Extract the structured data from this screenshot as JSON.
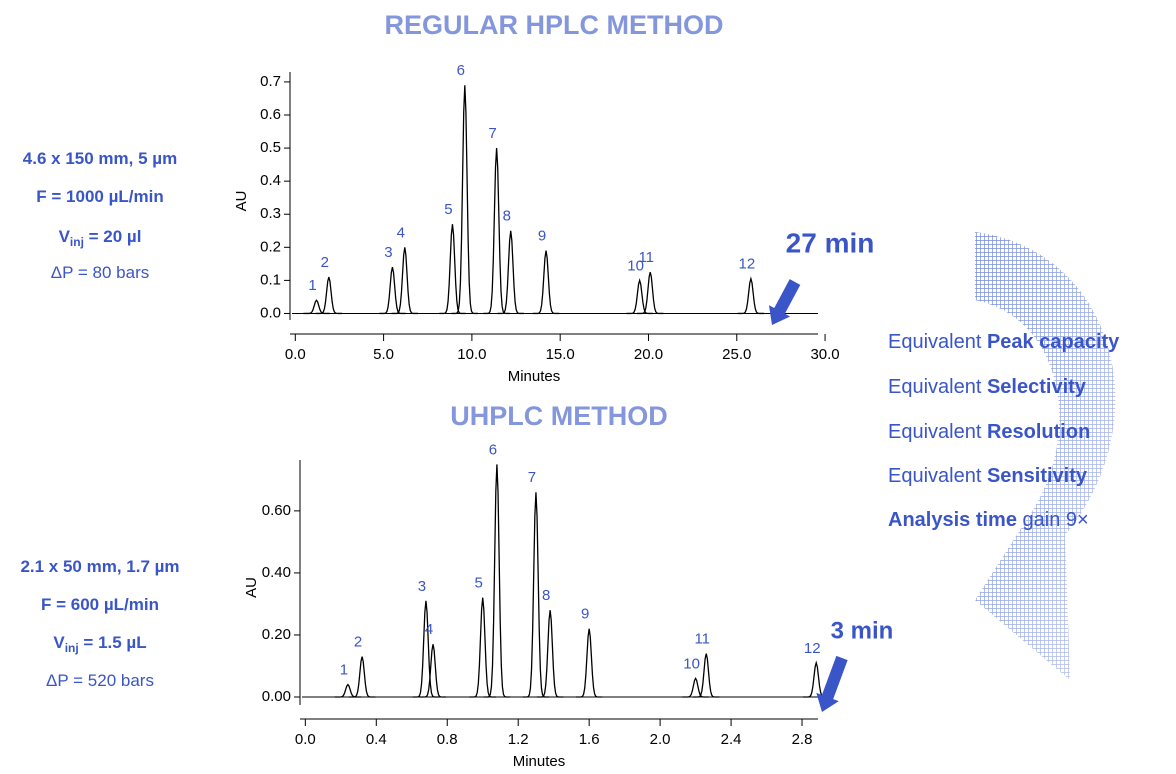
{
  "chart_data": [
    {
      "type": "line",
      "title": "REGULAR HPLC METHOD",
      "xlabel": "Minutes",
      "ylabel": "AU",
      "color": "#000000",
      "xlim": [
        -0.3,
        29.6
      ],
      "ylim": [
        -0.05,
        0.73
      ],
      "xticks": [
        {
          "value": 0,
          "label": "0.0"
        },
        {
          "value": 5,
          "label": "5.0"
        },
        {
          "value": 10,
          "label": "10.0"
        },
        {
          "value": 15,
          "label": "15.0"
        },
        {
          "value": 20,
          "label": "20.0"
        },
        {
          "value": 25,
          "label": "25.0"
        },
        {
          "value": 30,
          "label": "30.0"
        }
      ],
      "yticks": [
        {
          "value": 0,
          "label": "0.0"
        },
        {
          "value": 0.1,
          "label": "0.1"
        },
        {
          "value": 0.2,
          "label": "0.2"
        },
        {
          "value": 0.3,
          "label": "0.3"
        },
        {
          "value": 0.4,
          "label": "0.4"
        },
        {
          "value": 0.5,
          "label": "0.5"
        },
        {
          "value": 0.6,
          "label": "0.6"
        },
        {
          "value": 0.7,
          "label": "0.7"
        }
      ],
      "peaks": {
        "labels": [
          "1",
          "2",
          "3",
          "4",
          "5",
          "6",
          "7",
          "8",
          "9",
          "10",
          "11",
          "12"
        ],
        "x": [
          1.2,
          1.9,
          5.5,
          6.2,
          8.9,
          9.6,
          11.4,
          12.2,
          14.2,
          19.5,
          20.1,
          25.8
        ],
        "values": [
          0.04,
          0.11,
          0.14,
          0.2,
          0.27,
          0.69,
          0.5,
          0.25,
          0.19,
          0.1,
          0.125,
          0.105
        ]
      },
      "annotation": "27 min",
      "conditions": [
        {
          "text": "4.6 x 150 mm, 5 µm"
        },
        {
          "text": "F = 1000 µL/min"
        },
        {
          "text": "V",
          "sub": "inj",
          "rest": " = 20 µl"
        },
        {
          "text": "ΔP = 80 bars"
        }
      ]
    },
    {
      "type": "line",
      "title": "UHPLC METHOD",
      "xlabel": "Minutes",
      "ylabel": "AU",
      "color": "#000000",
      "xlim": [
        -0.03,
        2.89
      ],
      "ylim": [
        -0.058,
        0.764
      ],
      "xticks": [
        {
          "value": 0,
          "label": "0.0"
        },
        0.4,
        0.8,
        1.2,
        1.6,
        {
          "value": 2,
          "label": "2.0"
        },
        2.4,
        2.8
      ],
      "yticks": [
        {
          "value": 0,
          "label": "0.00"
        },
        {
          "value": 0.2,
          "label": "0.20"
        },
        {
          "value": 0.4,
          "label": "0.40"
        },
        {
          "value": 0.6,
          "label": "0.60"
        }
      ],
      "peaks": {
        "labels": [
          "1",
          "2",
          "3",
          "4",
          "5",
          "6",
          "7",
          "8",
          "9",
          "10",
          "11",
          "12"
        ],
        "x": [
          0.24,
          0.32,
          0.68,
          0.72,
          1.0,
          1.08,
          1.3,
          1.38,
          1.6,
          2.2,
          2.26,
          2.88
        ],
        "values": [
          0.04,
          0.13,
          0.31,
          0.17,
          0.32,
          0.75,
          0.66,
          0.28,
          0.22,
          0.06,
          0.14,
          0.11
        ]
      },
      "annotation": "3 min",
      "conditions": [
        {
          "text": "2.1 x 50 mm, 1.7 µm"
        },
        {
          "text": "F = 600 µL/min"
        },
        {
          "text": "V",
          "sub": "inj",
          "rest": " = 1.5 µL"
        },
        {
          "text": "ΔP = 520 bars"
        }
      ]
    }
  ],
  "summary": [
    [
      {
        "text": "Equivalent "
      },
      {
        "text": "Peak capacity",
        "bold": true
      }
    ],
    [
      {
        "text": "Equivalent "
      },
      {
        "text": "Selectivity",
        "bold": true
      }
    ],
    [
      {
        "text": "Equivalent "
      },
      {
        "text": "Resolution",
        "bold": true
      }
    ],
    [
      {
        "text": "Equivalent "
      },
      {
        "text": "Sensitivity",
        "bold": true
      }
    ],
    [
      {
        "text": "Analysis time",
        "bold": true
      },
      {
        "text": " gain 9×"
      }
    ]
  ]
}
